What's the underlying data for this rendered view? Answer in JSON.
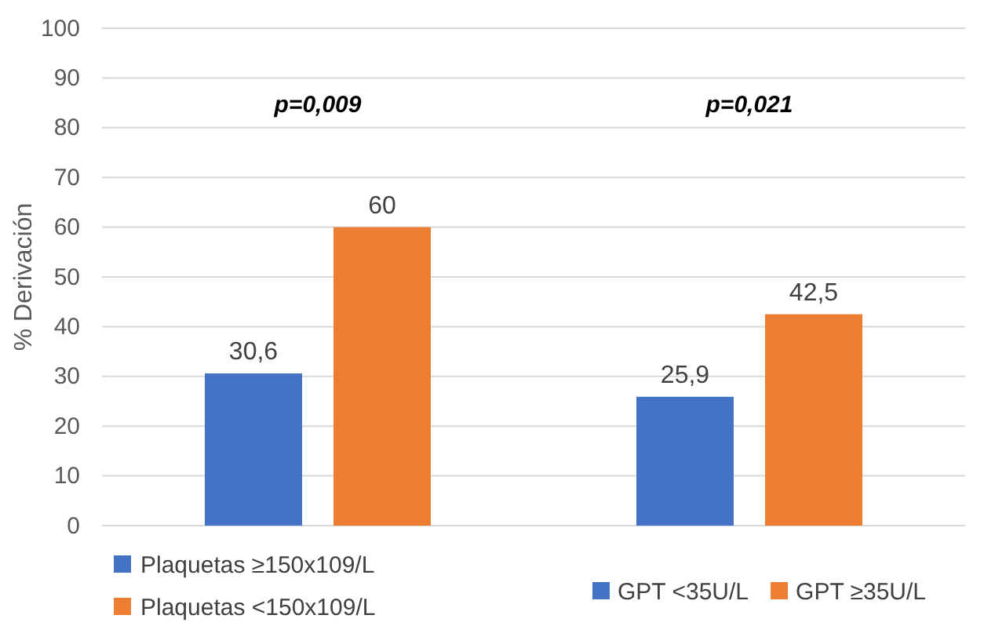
{
  "chart_data": {
    "type": "bar",
    "ylabel": "% Derivación",
    "categories": [
      null,
      null
    ],
    "series": [
      {
        "name": "Plaquetas ≥150x109/L",
        "color": "#4472c4",
        "values": [
          30.6,
          null
        ],
        "value_labels": [
          "30,6",
          null
        ]
      },
      {
        "name": "Plaquetas <150x109/L",
        "color": "#ed7d31",
        "values": [
          60,
          null
        ],
        "value_labels": [
          "60",
          null
        ]
      },
      {
        "name": "GPT <35U/L",
        "color": "#4472c4",
        "values": [
          null,
          25.9
        ],
        "value_labels": [
          null,
          "25,9"
        ]
      },
      {
        "name": "GPT ≥35U/L",
        "color": "#ed7d31",
        "values": [
          null,
          42.5
        ],
        "value_labels": [
          null,
          "42,5"
        ]
      }
    ],
    "ylim": [
      0,
      100
    ],
    "yticks": [
      0,
      10,
      20,
      30,
      40,
      50,
      60,
      70,
      80,
      90,
      100
    ],
    "grid": "y",
    "legend": "bottom",
    "annotations": [
      "p=0,009",
      "p=0,021"
    ]
  }
}
